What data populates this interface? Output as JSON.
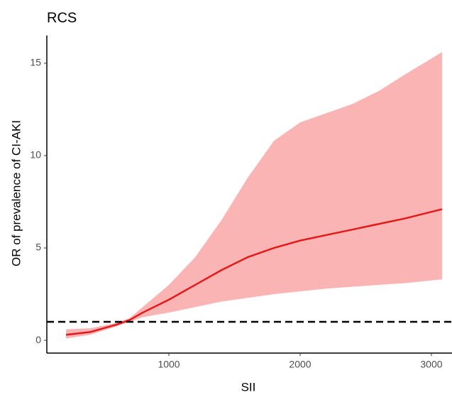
{
  "chart_data": {
    "type": "line",
    "title": "RCS",
    "x_label": "SII",
    "y_label": "OR of prevalence of CI-AKI",
    "x": [
      216,
      400,
      600,
      700,
      800,
      1000,
      1200,
      1400,
      1600,
      1800,
      2000,
      2200,
      2400,
      2600,
      2800,
      3081
    ],
    "series": [
      {
        "color": "#e31a1c",
        "band_color": "#fbb4b4",
        "values": [
          0.3,
          0.45,
          0.85,
          1.1,
          1.5,
          2.2,
          3.0,
          3.8,
          4.5,
          5.0,
          5.4,
          5.7,
          6.0,
          6.3,
          6.6,
          7.1
        ],
        "lower": [
          0.1,
          0.3,
          0.75,
          1.0,
          1.25,
          1.5,
          1.8,
          2.1,
          2.3,
          2.5,
          2.65,
          2.8,
          2.9,
          3.0,
          3.1,
          3.3
        ],
        "upper": [
          0.6,
          0.65,
          0.95,
          1.2,
          1.8,
          3.0,
          4.5,
          6.5,
          8.8,
          10.8,
          11.8,
          12.3,
          12.8,
          13.5,
          14.4,
          15.6
        ]
      }
    ],
    "reference_line": 1,
    "xlim": [
      70,
      3157
    ],
    "xticks": [
      1000,
      2000,
      3000
    ],
    "ylim": [
      -0.69,
      16.5
    ],
    "yticks": [
      0,
      5,
      10,
      15
    ]
  }
}
